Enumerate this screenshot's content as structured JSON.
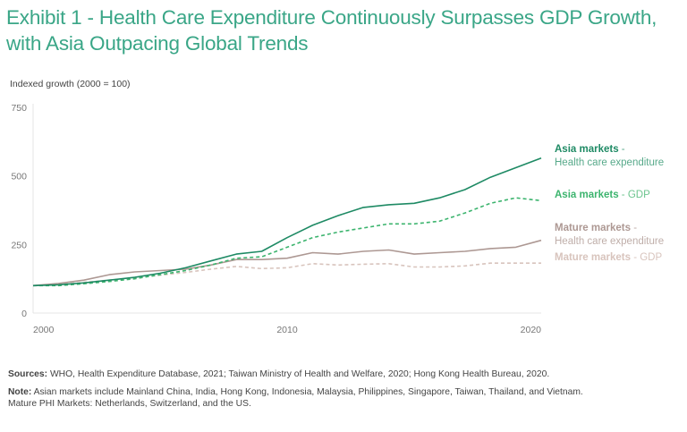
{
  "title": "Exhibit 1 - Health Care Expenditure Continuously Surpasses GDP Growth, with Asia Outpacing Global Trends",
  "notes": {
    "sources_label": "Sources:",
    "sources_text": " WHO, Health Expenditure Database, 2021; Taiwan Ministry of Health and Welfare, 2020; Hong Kong Health Bureau, 2020.",
    "note_label": "Note:",
    "note_text": " Asian markets include Mainland China, India, Hong Kong, Indonesia, Malaysia, Philippines, Singapore, Taiwan, Thailand, and Vietnam.",
    "note_text2": "Mature PHI Markets: Netherlands, Switzerland, and the US."
  },
  "chart_data": {
    "type": "line",
    "title": "Exhibit 1 - Health Care Expenditure Continuously Surpasses GDP Growth, with Asia Outpacing Global Trends",
    "ylabel": "Indexed growth (2000 = 100)",
    "xlabel": "",
    "xlim": [
      2000,
      2020
    ],
    "ylim": [
      0,
      750
    ],
    "yticks": [
      0,
      250,
      500,
      750
    ],
    "xticks": [
      2000,
      2010,
      2020
    ],
    "grid": false,
    "legend": "right (inline labels)",
    "x": [
      2000,
      2001,
      2002,
      2003,
      2004,
      2005,
      2006,
      2007,
      2008,
      2009,
      2010,
      2011,
      2012,
      2013,
      2014,
      2015,
      2016,
      2017,
      2018,
      2019,
      2020
    ],
    "series": [
      {
        "name": "Asia markets - Health care expenditure",
        "bold": "Asia markets",
        "rest": " - ",
        "rest2": "Health care expenditure",
        "color": "#1e8a64",
        "dash": false,
        "values": [
          100,
          103,
          110,
          120,
          130,
          145,
          165,
          190,
          215,
          225,
          275,
          320,
          355,
          385,
          395,
          400,
          420,
          450,
          495,
          530,
          565
        ]
      },
      {
        "name": "Asia markets - GDP",
        "bold": "Asia markets",
        "rest": " - GDP",
        "color": "#3cb46e",
        "dash": true,
        "values": [
          100,
          100,
          107,
          115,
          125,
          140,
          155,
          175,
          200,
          205,
          240,
          275,
          295,
          310,
          325,
          325,
          335,
          365,
          400,
          420,
          410
        ]
      },
      {
        "name": "Mature markets - Health care expenditure",
        "bold": "Mature markets",
        "rest": " - ",
        "rest2": "Health care expenditure",
        "color": "#ad9893",
        "dash": false,
        "values": [
          100,
          108,
          120,
          140,
          150,
          155,
          160,
          175,
          195,
          195,
          200,
          220,
          215,
          225,
          230,
          215,
          220,
          225,
          235,
          240,
          265
        ]
      },
      {
        "name": "Mature markets - GDP",
        "bold": "Mature markets",
        "rest": " - GDP",
        "color": "#d8c4bd",
        "dash": true,
        "values": [
          100,
          105,
          112,
          120,
          128,
          138,
          148,
          160,
          170,
          162,
          165,
          180,
          175,
          178,
          180,
          168,
          168,
          172,
          182,
          182,
          182
        ]
      }
    ]
  }
}
